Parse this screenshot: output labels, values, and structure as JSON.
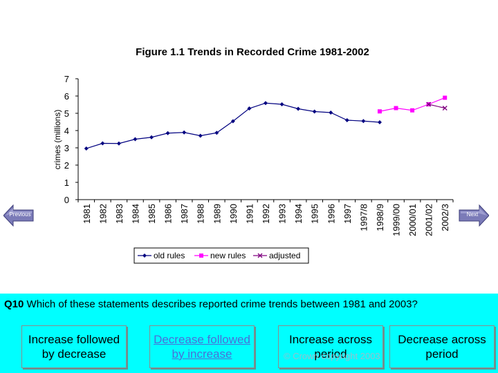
{
  "chart_data": {
    "type": "line",
    "title": "Figure 1.1 Trends in Recorded Crime 1981-2002",
    "xlabel": "",
    "ylabel": "crimes (millions)",
    "ylim": [
      0,
      7
    ],
    "yticks": [
      0,
      1,
      2,
      3,
      4,
      5,
      6,
      7
    ],
    "categories": [
      "1981",
      "1982",
      "1983",
      "1984",
      "1985",
      "1986",
      "1987",
      "1988",
      "1989",
      "1990",
      "1991",
      "1992",
      "1993",
      "1994",
      "1995",
      "1996",
      "1997",
      "1997/8",
      "1998/9",
      "1999/00",
      "2000/01",
      "2001/02",
      "2002/3"
    ],
    "grid": false,
    "legend": "bottom",
    "series": [
      {
        "name": "old rules",
        "color": "#000080",
        "marker": "diamond",
        "values": [
          2.96,
          3.26,
          3.25,
          3.5,
          3.61,
          3.85,
          3.89,
          3.7,
          3.87,
          4.54,
          5.28,
          5.59,
          5.52,
          5.26,
          5.1,
          5.04,
          4.6,
          4.55,
          4.48,
          null,
          null,
          null,
          null
        ]
      },
      {
        "name": "new rules",
        "color": "#ff00ff",
        "marker": "square",
        "values": [
          null,
          null,
          null,
          null,
          null,
          null,
          null,
          null,
          null,
          null,
          null,
          null,
          null,
          null,
          null,
          null,
          null,
          null,
          5.11,
          5.3,
          5.17,
          5.52,
          5.9
        ]
      },
      {
        "name": "adjusted",
        "color": "#800080",
        "marker": "x",
        "values": [
          null,
          null,
          null,
          null,
          null,
          null,
          null,
          null,
          null,
          null,
          null,
          null,
          null,
          null,
          null,
          null,
          null,
          null,
          null,
          null,
          null,
          5.52,
          5.3
        ]
      }
    ]
  },
  "nav": {
    "previous_label": "Previous",
    "next_label": "Next",
    "button_color": "#7b7bb8"
  },
  "question": {
    "number": "Q10",
    "text": "Which of these statements describes reported crime trends between 1981 and 2003?",
    "background": "#00ffff",
    "answers": [
      "Increase followed by decrease",
      "Decrease followed by increase",
      "Increase across period",
      "Decrease across period"
    ]
  },
  "watermark": "© Crown copyright 2003"
}
